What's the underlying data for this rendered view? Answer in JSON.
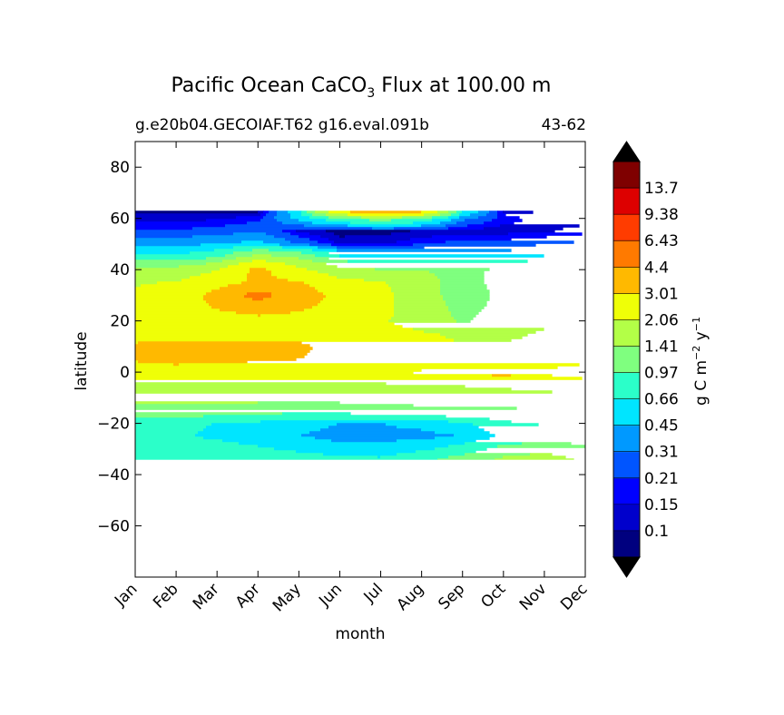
{
  "chart_data": {
    "type": "heatmap",
    "plot": "filled-contour",
    "title_prefix": "Pacific Ocean CaCO",
    "title_sub": "3",
    "title_suffix": " Flux at 100.00 m",
    "subtitle_left": "g.e20b04.GECOIAF.T62 g16.eval.091b",
    "subtitle_right": "43-62",
    "xlabel": "month",
    "ylabel": "latitude",
    "x_ticks": [
      "Jan",
      "Feb",
      "Mar",
      "Apr",
      "May",
      "Jun",
      "Jul",
      "Aug",
      "Sep",
      "Oct",
      "Nov",
      "Dec"
    ],
    "y_ticks": [
      "80",
      "60",
      "40",
      "20",
      "0",
      "−20",
      "−40",
      "−60"
    ],
    "y_tick_values": [
      80,
      60,
      40,
      20,
      0,
      -20,
      -40,
      -60
    ],
    "ylim": [
      -80,
      90
    ],
    "data_lat_range": [
      -34,
      63
    ],
    "colorbar": {
      "label_main": "g C m",
      "label_exp1": "−2",
      "label_mid": " y",
      "label_exp2": "−1",
      "levels": [
        "0.1",
        "0.15",
        "0.21",
        "0.31",
        "0.45",
        "0.66",
        "0.97",
        "1.41",
        "2.06",
        "3.01",
        "4.4",
        "6.43",
        "9.38",
        "13.7"
      ],
      "colors": [
        "#00007f",
        "#0000cc",
        "#0000ff",
        "#0055ff",
        "#0099ff",
        "#00e5ff",
        "#2bffc9",
        "#7fff7f",
        "#b3ff47",
        "#efff07",
        "#ffb900",
        "#ff7a00",
        "#ff3c00",
        "#dd0000",
        "#7f0000"
      ],
      "extend": "both",
      "under_color": "#000000",
      "over_color": "#000000"
    },
    "monthly_bands": {
      "lat_nodes": [
        -34,
        -30,
        -25,
        -20,
        -15,
        -10,
        -5,
        0,
        5,
        10,
        15,
        20,
        25,
        30,
        35,
        40,
        45,
        50,
        55,
        60,
        63
      ],
      "values": [
        [
          0.9,
          0.85,
          0.75,
          0.8,
          1.2,
          1.6,
          1.9,
          2.6,
          3.1,
          3.2,
          2.5,
          2.1,
          2.3,
          2.2,
          2.0,
          1.6,
          0.7,
          0.4,
          0.22,
          0.12,
          0.08
        ],
        [
          0.9,
          0.85,
          0.7,
          0.75,
          1.2,
          1.6,
          1.9,
          2.6,
          3.3,
          3.4,
          2.6,
          2.2,
          2.4,
          2.3,
          2.1,
          1.6,
          0.7,
          0.4,
          0.22,
          0.12,
          0.08
        ],
        [
          0.9,
          0.8,
          0.6,
          0.65,
          1.2,
          1.6,
          1.9,
          2.6,
          3.2,
          3.4,
          2.6,
          2.4,
          3.1,
          3.4,
          2.6,
          2.0,
          0.9,
          0.45,
          0.25,
          0.14,
          0.08
        ],
        [
          0.85,
          0.7,
          0.5,
          0.6,
          1.1,
          1.6,
          1.9,
          2.5,
          3.1,
          3.3,
          2.6,
          2.6,
          3.6,
          5.0,
          3.2,
          3.3,
          1.6,
          0.5,
          0.3,
          0.18,
          0.08
        ],
        [
          0.8,
          0.6,
          0.45,
          0.5,
          1.1,
          1.6,
          1.9,
          2.5,
          3.0,
          3.2,
          2.6,
          2.5,
          3.2,
          3.6,
          3.1,
          2.2,
          1.3,
          0.3,
          0.14,
          0.5,
          0.6
        ],
        [
          0.75,
          0.5,
          0.4,
          0.45,
          1.1,
          1.6,
          1.9,
          2.5,
          2.7,
          2.6,
          2.3,
          2.3,
          2.6,
          2.7,
          2.3,
          1.6,
          0.7,
          0.14,
          0.07,
          0.9,
          3.0
        ],
        [
          0.7,
          0.5,
          0.4,
          0.45,
          1.2,
          1.6,
          2.0,
          2.5,
          2.3,
          2.2,
          2.2,
          2.1,
          2.2,
          2.3,
          2.1,
          1.4,
          0.6,
          0.14,
          0.08,
          1.2,
          5.0
        ],
        [
          0.9,
          0.6,
          0.4,
          0.5,
          1.3,
          1.6,
          2.0,
          3.2,
          2.2,
          2.1,
          2.1,
          1.9,
          1.8,
          1.6,
          1.6,
          1.4,
          0.6,
          0.2,
          0.1,
          0.9,
          3.5
        ],
        [
          1.1,
          0.8,
          0.45,
          0.6,
          1.3,
          1.7,
          2.1,
          3.3,
          2.3,
          2.1,
          2.0,
          1.3,
          1.2,
          1.2,
          1.2,
          1.3,
          0.6,
          0.25,
          0.12,
          0.35,
          0.7
        ],
        [
          1.5,
          1.1,
          0.7,
          0.9,
          1.3,
          1.7,
          2.2,
          3.3,
          2.4,
          2.1,
          2.0,
          1.8,
          1.6,
          1.5,
          1.6,
          1.5,
          0.65,
          0.25,
          0.12,
          0.18,
          0.12
        ],
        [
          1.7,
          1.2,
          0.8,
          1.0,
          1.4,
          1.8,
          2.3,
          3.2,
          2.5,
          2.1,
          2.1,
          2.0,
          1.9,
          1.8,
          1.7,
          1.6,
          0.7,
          0.3,
          0.14,
          0.12,
          0.08
        ],
        [
          1.3,
          1.0,
          0.85,
          1.0,
          1.4,
          1.8,
          2.6,
          3.4,
          2.8,
          2.2,
          2.1,
          2.0,
          2.0,
          2.0,
          1.9,
          1.6,
          0.7,
          0.35,
          0.18,
          0.12,
          0.08
        ]
      ]
    }
  }
}
